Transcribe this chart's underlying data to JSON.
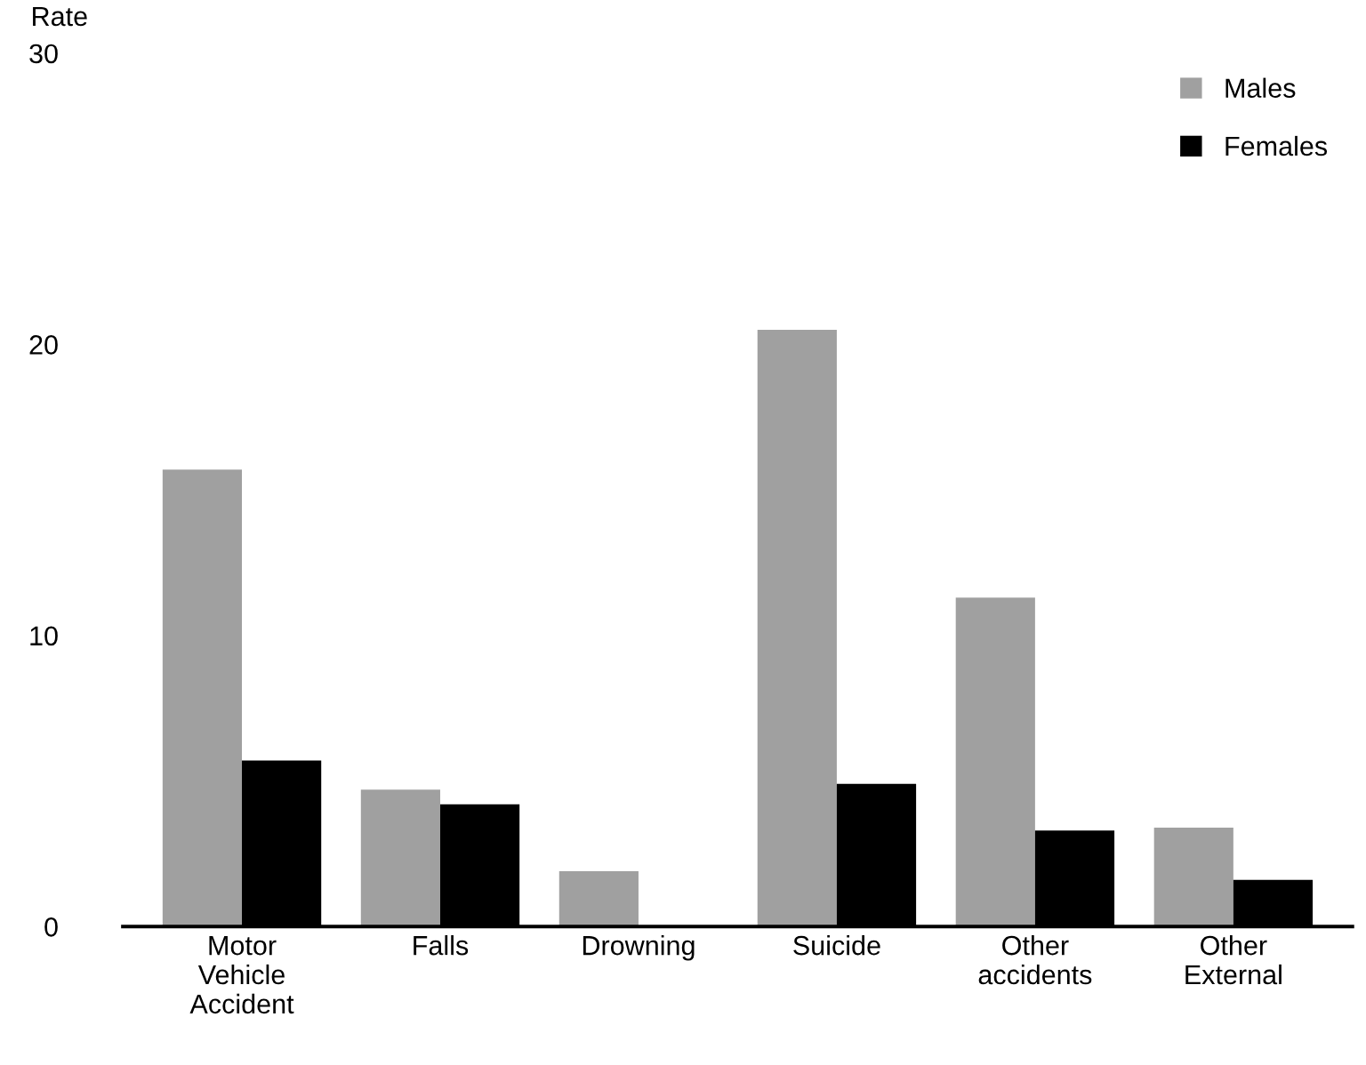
{
  "chart_data": {
    "type": "bar",
    "ylabel": "Rate",
    "categories": [
      "Motor\nVehicle\nAccident",
      "Falls",
      "Drowning",
      "Suicide",
      "Other\naccidents",
      "Other\nExternal"
    ],
    "series": [
      {
        "name": "Males",
        "color": "#a0a0a0",
        "values": [
          15.7,
          4.7,
          1.9,
          20.5,
          11.3,
          3.4
        ]
      },
      {
        "name": "Females",
        "color": "#000000",
        "values": [
          5.7,
          4.2,
          null,
          4.9,
          3.3,
          1.6
        ]
      }
    ],
    "ylim": [
      0,
      30
    ],
    "yticks": [
      0,
      10,
      20,
      30
    ],
    "grid": false,
    "legend": "top right"
  }
}
